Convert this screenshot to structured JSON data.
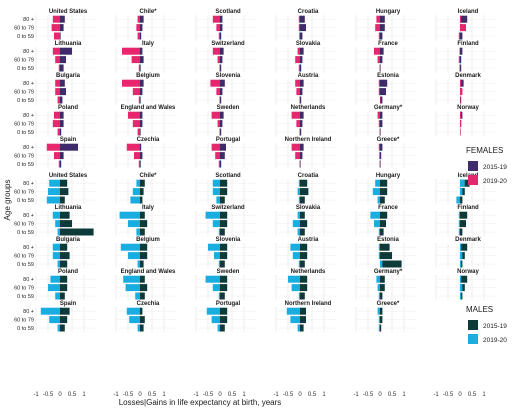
{
  "chart_data": {
    "type": "bar",
    "orientation": "horizontal",
    "xlabel": "Losses|Gains in life expectancy at birth, years",
    "ylabel": "Age groups",
    "xticks": [
      "-1",
      "-0.5",
      "0",
      "0.5",
      "1"
    ],
    "xlim": [
      -1,
      1.5
    ],
    "grid": true,
    "age_groups": [
      "80 +",
      "60 to 79",
      "0 to 59"
    ],
    "countries": [
      "United States",
      "Chile*",
      "Scotland",
      "Croatia",
      "Hungary",
      "Iceland",
      "Lithuania",
      "Italy",
      "Switzerland",
      "Slovakia",
      "France",
      "Finland",
      "Bulgaria",
      "Belgium",
      "Slovenia",
      "Austria",
      "Estonia",
      "Denmark",
      "Poland",
      "England and Wales",
      "Sweden",
      "Netherlands",
      "Germany*",
      "Norway",
      "Spain",
      "Czechia",
      "Portugal",
      "Northern Ireland",
      "Greece*"
    ],
    "panels": [
      {
        "name": "FEMALES",
        "legend_title": "FEMALES",
        "series": [
          {
            "name": "2015-19",
            "color": "#3f2a6b"
          },
          {
            "name": "2019-20",
            "color": "#e8266d"
          }
        ],
        "values": {
          "United States": {
            "2015-19": [
              0.2,
              0.15,
              0.02
            ],
            "2019-20": [
              -0.3,
              -0.35,
              -0.25
            ]
          },
          "Chile*": {
            "2015-19": [
              0.15,
              0.1,
              0.05
            ],
            "2019-20": [
              -0.1,
              -0.15,
              -0.1
            ]
          },
          "Scotland": {
            "2015-19": [
              0.1,
              0.1,
              0.05
            ],
            "2019-20": [
              -0.3,
              -0.15,
              -0.05
            ]
          },
          "Croatia": {
            "2015-19": [
              0.2,
              0.25,
              0.1
            ],
            "2019-20": [
              -0.05,
              -0.05,
              -0.03
            ]
          },
          "Hungary": {
            "2015-19": [
              0.2,
              0.2,
              0.1
            ],
            "2019-20": [
              -0.15,
              -0.2,
              -0.05
            ]
          },
          "Iceland": {
            "2015-19": [
              0.3,
              0.1,
              0.1
            ],
            "2019-20": [
              0.05,
              0.25,
              -0.05
            ]
          },
          "Lithuania": {
            "2015-19": [
              0.5,
              0.25,
              0.15
            ],
            "2019-20": [
              -0.3,
              -0.2,
              -0.05
            ]
          },
          "Italy": {
            "2015-19": [
              0.1,
              0.15,
              0.02
            ],
            "2019-20": [
              -0.75,
              -0.35,
              -0.05
            ]
          },
          "Switzerland": {
            "2015-19": [
              0.15,
              0.1,
              0.05
            ],
            "2019-20": [
              -0.3,
              -0.1,
              -0.02
            ]
          },
          "Slovakia": {
            "2015-19": [
              0.15,
              0.1,
              0.05
            ],
            "2019-20": [
              -0.1,
              -0.2,
              -0.05
            ]
          },
          "France": {
            "2015-19": [
              0.15,
              0.1,
              0.02
            ],
            "2019-20": [
              -0.25,
              -0.1,
              -0.02
            ]
          },
          "Finland": {
            "2015-19": [
              0.1,
              0.05,
              0.05
            ],
            "2019-20": [
              -0.02,
              -0.05,
              -0.02
            ]
          },
          "Bulgaria": {
            "2015-19": [
              0.2,
              0.25,
              0.1
            ],
            "2019-20": [
              -0.2,
              -0.2,
              -0.1
            ]
          },
          "Belgium": {
            "2015-19": [
              0.15,
              0.1,
              0.02
            ],
            "2019-20": [
              -0.75,
              -0.3,
              -0.05
            ]
          },
          "Slovenia": {
            "2015-19": [
              0.2,
              0.1,
              0.05
            ],
            "2019-20": [
              -0.4,
              -0.15,
              -0.02
            ]
          },
          "Austria": {
            "2015-19": [
              0.15,
              0.1,
              0.05
            ],
            "2019-20": [
              -0.2,
              -0.15,
              -0.02
            ]
          },
          "Estonia": {
            "2015-19": [
              0.3,
              0.25,
              0.1
            ],
            "2019-20": [
              -0.05,
              -0.05,
              0.02
            ]
          },
          "Denmark": {
            "2015-19": [
              0.15,
              0.05,
              0.05
            ],
            "2019-20": [
              0.05,
              0.1,
              0.02
            ]
          },
          "Poland": {
            "2015-19": [
              0.15,
              0.15,
              0.05
            ],
            "2019-20": [
              -0.25,
              -0.3,
              -0.1
            ]
          },
          "England and Wales": {
            "2015-19": [
              0.1,
              0.1,
              0.02
            ],
            "2019-20": [
              -0.5,
              -0.3,
              -0.1
            ]
          },
          "Sweden": {
            "2015-19": [
              0.15,
              0.1,
              0.05
            ],
            "2019-20": [
              -0.35,
              -0.1,
              -0.02
            ]
          },
          "Netherlands": {
            "2015-19": [
              0.15,
              0.1,
              0.05
            ],
            "2019-20": [
              -0.35,
              -0.15,
              -0.02
            ]
          },
          "Germany*": {
            "2015-19": [
              0.1,
              0.1,
              0.02
            ],
            "2019-20": [
              -0.1,
              -0.05,
              -0.02
            ]
          },
          "Norway": {
            "2015-19": [
              0.1,
              0.05,
              0.02
            ],
            "2019-20": [
              0.05,
              0.05,
              0.02
            ]
          },
          "Spain": {
            "2015-19": [
              0.75,
              0.15,
              0.05
            ],
            "2019-20": [
              -0.55,
              -0.25,
              -0.05
            ]
          },
          "Czechia": {
            "2015-19": [
              0.05,
              0.1,
              0.03
            ],
            "2019-20": [
              -0.55,
              -0.25,
              -0.05
            ]
          },
          "Portugal": {
            "2015-19": [
              0.25,
              0.2,
              0.05
            ],
            "2019-20": [
              -0.35,
              -0.2,
              -0.05
            ]
          },
          "Northern Ireland": {
            "2015-19": [
              0.15,
              0.1,
              0.02
            ],
            "2019-20": [
              -0.35,
              -0.2,
              -0.02
            ]
          },
          "Greece*": {
            "2015-19": [
              0.1,
              0.05,
              0.02
            ],
            "2019-20": [
              -0.05,
              -0.03,
              -0.02
            ]
          }
        }
      },
      {
        "name": "MALES",
        "legend_title": "MALES",
        "series": [
          {
            "name": "2015-19",
            "color": "#0e3b3a"
          },
          {
            "name": "2019-20",
            "color": "#1aaee0"
          }
        ],
        "values": {
          "United States": {
            "2015-19": [
              0.3,
              0.35,
              0.2
            ],
            "2019-20": [
              -0.45,
              -0.5,
              -0.55
            ]
          },
          "Chile*": {
            "2015-19": [
              0.2,
              0.15,
              0.1
            ],
            "2019-20": [
              -0.15,
              -0.3,
              -0.4
            ]
          },
          "Scotland": {
            "2015-19": [
              0.3,
              0.3,
              0.2
            ],
            "2019-20": [
              -0.3,
              -0.3,
              -0.15
            ]
          },
          "Croatia": {
            "2015-19": [
              0.3,
              0.35,
              0.2
            ],
            "2019-20": [
              -0.05,
              -0.1,
              -0.05
            ]
          },
          "Hungary": {
            "2015-19": [
              0.3,
              0.3,
              0.2
            ],
            "2019-20": [
              -0.2,
              -0.3,
              -0.1
            ]
          },
          "Iceland": {
            "2015-19": [
              0.4,
              0.2,
              0.1
            ],
            "2019-20": [
              0.2,
              0.1,
              -0.15
            ]
          },
          "Lithuania": {
            "2015-19": [
              0.4,
              0.5,
              1.4
            ],
            "2019-20": [
              -0.3,
              -0.2,
              -0.1
            ]
          },
          "Italy": {
            "2015-19": [
              0.2,
              0.3,
              0.2
            ],
            "2019-20": [
              -0.85,
              -0.5,
              -0.15
            ]
          },
          "Switzerland": {
            "2015-19": [
              0.3,
              0.3,
              0.2
            ],
            "2019-20": [
              -0.6,
              -0.3,
              -0.05
            ]
          },
          "Slovakia": {
            "2015-19": [
              0.2,
              0.3,
              0.2
            ],
            "2019-20": [
              -0.1,
              -0.3,
              -0.1
            ]
          },
          "France": {
            "2015-19": [
              0.3,
              0.25,
              0.15
            ],
            "2019-20": [
              -0.4,
              -0.25,
              -0.05
            ]
          },
          "Finland": {
            "2015-19": [
              0.3,
              0.25,
              0.1
            ],
            "2019-20": [
              -0.05,
              -0.05,
              -0.05
            ]
          },
          "Bulgaria": {
            "2015-19": [
              0.3,
              0.4,
              0.3
            ],
            "2019-20": [
              -0.3,
              -0.3,
              -0.1
            ]
          },
          "Belgium": {
            "2015-19": [
              0.3,
              0.3,
              0.15
            ],
            "2019-20": [
              -0.8,
              -0.5,
              -0.1
            ]
          },
          "Slovenia": {
            "2015-19": [
              0.3,
              0.3,
              0.2
            ],
            "2019-20": [
              -0.5,
              -0.25,
              -0.05
            ]
          },
          "Austria": {
            "2015-19": [
              0.3,
              0.3,
              0.2
            ],
            "2019-20": [
              -0.4,
              -0.3,
              -0.05
            ]
          },
          "Estonia": {
            "2015-19": [
              0.4,
              0.5,
              0.9
            ],
            "2019-20": [
              -0.05,
              -0.05,
              0.1
            ]
          },
          "Denmark": {
            "2015-19": [
              0.3,
              0.2,
              0.1
            ],
            "2019-20": [
              0.05,
              0.1,
              0.05
            ]
          },
          "Poland": {
            "2015-19": [
              0.3,
              0.3,
              0.2
            ],
            "2019-20": [
              -0.4,
              -0.5,
              -0.2
            ]
          },
          "England and Wales": {
            "2015-19": [
              0.2,
              0.3,
              0.2
            ],
            "2019-20": [
              -0.7,
              -0.6,
              -0.2
            ]
          },
          "Sweden": {
            "2015-19": [
              0.3,
              0.3,
              0.2
            ],
            "2019-20": [
              -0.6,
              -0.3,
              -0.05
            ]
          },
          "Netherlands": {
            "2015-19": [
              0.3,
              0.3,
              0.2
            ],
            "2019-20": [
              -0.5,
              -0.35,
              -0.05
            ]
          },
          "Germany*": {
            "2015-19": [
              0.2,
              0.2,
              0.1
            ],
            "2019-20": [
              -0.15,
              -0.1,
              -0.05
            ]
          },
          "Norway": {
            "2015-19": [
              0.3,
              0.2,
              0.1
            ],
            "2019-20": [
              0.05,
              0.1,
              0.05
            ]
          },
          "Spain": {
            "2015-19": [
              0.4,
              0.3,
              0.2
            ],
            "2019-20": [
              -0.8,
              -0.45,
              -0.1
            ]
          },
          "Czechia": {
            "2015-19": [
              0.1,
              0.2,
              0.15
            ],
            "2019-20": [
              -0.55,
              -0.45,
              -0.1
            ]
          },
          "Portugal": {
            "2015-19": [
              0.3,
              0.3,
              0.2
            ],
            "2019-20": [
              -0.55,
              -0.35,
              -0.1
            ]
          },
          "Northern Ireland": {
            "2015-19": [
              0.25,
              0.25,
              0.15
            ],
            "2019-20": [
              -0.55,
              -0.4,
              -0.1
            ]
          },
          "Greece*": {
            "2015-19": [
              0.1,
              0.1,
              0.05
            ],
            "2019-20": [
              -0.1,
              -0.05,
              -0.05
            ]
          }
        }
      }
    ]
  }
}
